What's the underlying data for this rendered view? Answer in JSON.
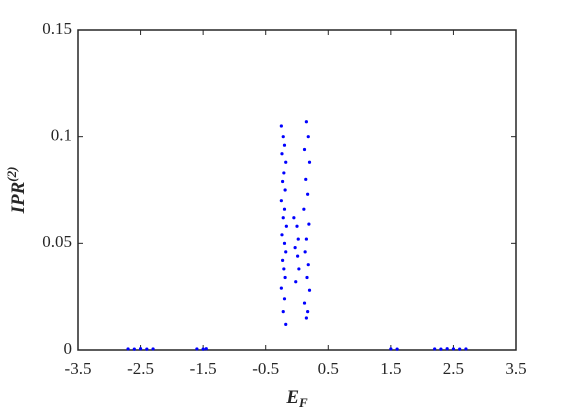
{
  "chart_data": {
    "type": "scatter",
    "xlabel": {
      "text": "E",
      "sub": "F"
    },
    "ylabel": {
      "text": "IPR",
      "sup": "(2)"
    },
    "series": [
      {
        "color": "#0000ff",
        "x": [
          -0.25,
          -0.22,
          -0.2,
          -0.24,
          -0.18,
          -0.21,
          -0.23,
          -0.19,
          -0.25,
          -0.2,
          -0.22,
          -0.17,
          -0.24,
          -0.2,
          -0.18,
          -0.23,
          -0.21,
          -0.19,
          -0.25,
          -0.2,
          -0.22,
          -0.18,
          0.15,
          0.18,
          0.12,
          0.2,
          0.14,
          0.17,
          0.11,
          0.19,
          0.15,
          0.13,
          0.18,
          0.16,
          0.2,
          0.12,
          0.17,
          0.15,
          -0.05,
          0.0,
          0.02,
          -0.03,
          0.01,
          0.03,
          -0.02,
          -2.7,
          -2.6,
          -2.5,
          -2.4,
          -2.3,
          -1.6,
          -1.5,
          -1.45,
          1.5,
          1.6,
          2.2,
          2.3,
          2.4,
          2.5,
          2.6,
          2.7
        ],
        "values": [
          0.105,
          0.1,
          0.096,
          0.092,
          0.088,
          0.083,
          0.079,
          0.075,
          0.07,
          0.066,
          0.062,
          0.058,
          0.054,
          0.05,
          0.046,
          0.042,
          0.038,
          0.034,
          0.029,
          0.024,
          0.018,
          0.012,
          0.107,
          0.1,
          0.094,
          0.088,
          0.08,
          0.073,
          0.066,
          0.059,
          0.052,
          0.046,
          0.04,
          0.034,
          0.028,
          0.022,
          0.018,
          0.015,
          0.062,
          0.058,
          0.052,
          0.048,
          0.044,
          0.038,
          0.032,
          0.0005,
          0.0004,
          0.0006,
          0.0004,
          0.0005,
          0.0005,
          0.0004,
          0.0006,
          0.0005,
          0.0004,
          0.0005,
          0.0004,
          0.0006,
          0.0005,
          0.0004,
          0.0005
        ]
      }
    ],
    "xlim": [
      -3.5,
      3.5
    ],
    "xticks": [
      -3.5,
      -2.5,
      -1.5,
      -0.5,
      0.5,
      1.5,
      2.5,
      3.5
    ],
    "ylim": [
      0,
      0.15
    ],
    "yticks": [
      0,
      0.05,
      0.1,
      0.15
    ]
  }
}
